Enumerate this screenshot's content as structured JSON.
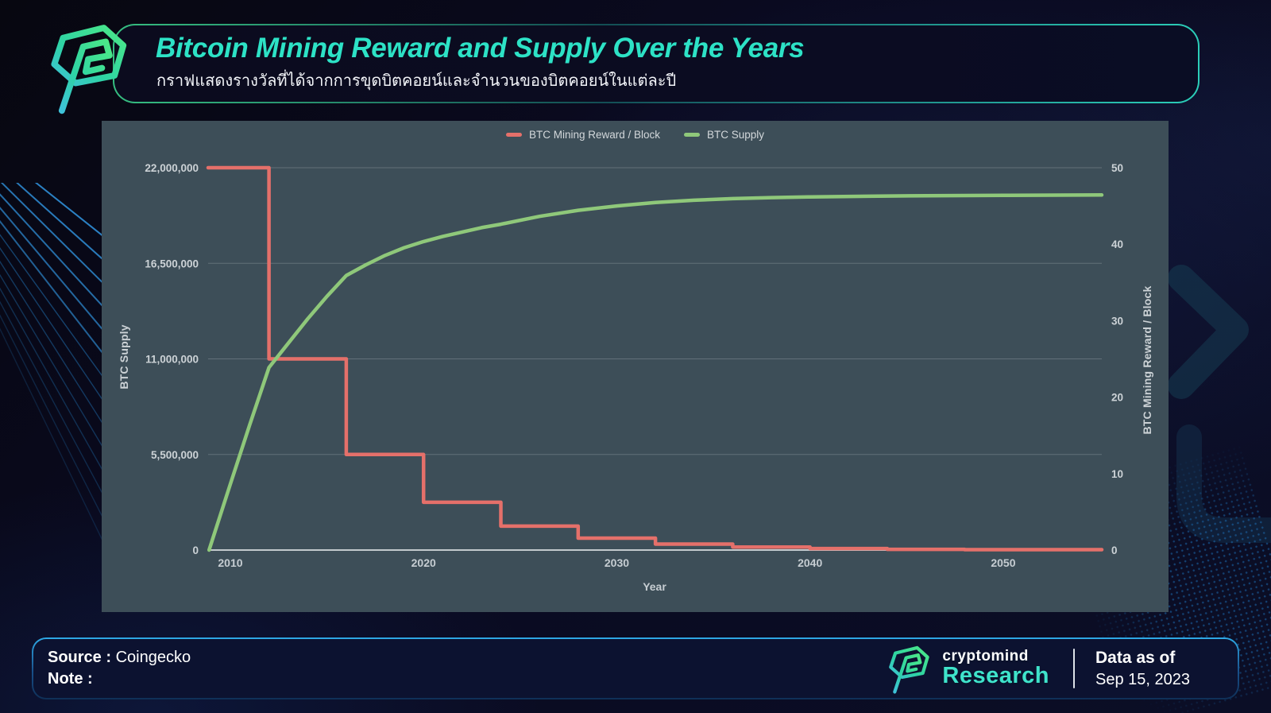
{
  "colors": {
    "accent_teal": "#2de2c6",
    "reward_red": "#e5706a",
    "supply_green": "#8fc87a",
    "panel_bg": "#3d4e58",
    "page_bg": "#0a0a20",
    "footer_border_blue": "#2ea9e6"
  },
  "header": {
    "title": "Bitcoin Mining Reward and Supply Over the Years",
    "subtitle": "กราฟแสดงรางวัลที่ได้จากการขุดบิตคอยน์และจำนวนของบิตคอยน์ในแต่ละปี"
  },
  "chart_data": {
    "type": "line",
    "title": "Bitcoin Mining Reward and Supply Over the Years",
    "xlabel": "Year",
    "x_range": [
      2008.85,
      2055.1
    ],
    "x_ticks": [
      2010,
      2020,
      2030,
      2040,
      2050
    ],
    "grid": "horizontal-only",
    "legend": {
      "position": "top-center",
      "entries": [
        {
          "name": "BTC Mining Reward / Block",
          "color": "#e5706a"
        },
        {
          "name": "BTC Supply",
          "color": "#8fc87a"
        }
      ]
    },
    "axes": {
      "left": {
        "label": "BTC Supply",
        "range": [
          0,
          22000000
        ],
        "ticks": [
          0,
          5500000,
          11000000,
          16500000,
          22000000
        ],
        "tick_labels": [
          "0",
          "5,500,000",
          "11,000,000",
          "16,500,000",
          "22,000,000"
        ]
      },
      "right": {
        "label": "BTC Mining Reward / Block",
        "range": [
          0,
          50
        ],
        "ticks": [
          0,
          10,
          20,
          30,
          40,
          50
        ],
        "tick_labels": [
          "0",
          "10",
          "20",
          "30",
          "40",
          "50"
        ]
      }
    },
    "series": [
      {
        "name": "BTC Mining Reward / Block",
        "axis": "right",
        "type": "step-after",
        "color": "#e5706a",
        "points": [
          [
            2008.85,
            50
          ],
          [
            2012,
            25
          ],
          [
            2016,
            12.5
          ],
          [
            2020,
            6.25
          ],
          [
            2024,
            3.125
          ],
          [
            2028,
            1.5625
          ],
          [
            2032,
            0.78125
          ],
          [
            2036,
            0.390625
          ],
          [
            2040,
            0.1953125
          ],
          [
            2044,
            0.09765625
          ],
          [
            2048,
            0.048828125
          ],
          [
            2055.1,
            0.048828125
          ]
        ]
      },
      {
        "name": "BTC Supply",
        "axis": "left",
        "type": "line",
        "color": "#8fc87a",
        "points": [
          [
            2008.9,
            0
          ],
          [
            2010,
            3800000
          ],
          [
            2011,
            7200000
          ],
          [
            2012,
            10500000
          ],
          [
            2013,
            11900000
          ],
          [
            2014,
            13300000
          ],
          [
            2015,
            14600000
          ],
          [
            2016,
            15800000
          ],
          [
            2017,
            16400000
          ],
          [
            2018,
            16950000
          ],
          [
            2019,
            17400000
          ],
          [
            2020,
            17750000
          ],
          [
            2021,
            18050000
          ],
          [
            2022,
            18300000
          ],
          [
            2023,
            18550000
          ],
          [
            2024,
            18750000
          ],
          [
            2026,
            19200000
          ],
          [
            2028,
            19550000
          ],
          [
            2030,
            19800000
          ],
          [
            2032,
            20000000
          ],
          [
            2034,
            20130000
          ],
          [
            2036,
            20220000
          ],
          [
            2038,
            20280000
          ],
          [
            2040,
            20320000
          ],
          [
            2043,
            20360000
          ],
          [
            2046,
            20390000
          ],
          [
            2050,
            20410000
          ],
          [
            2055.1,
            20430000
          ]
        ]
      }
    ]
  },
  "footer": {
    "source_label": "Source :",
    "source_value": "Coingecko",
    "note_label": "Note :",
    "brand_top": "cryptomind",
    "brand_bottom": "Research",
    "data_as_of_label": "Data as of",
    "data_as_of_value": "Sep 15, 2023"
  }
}
